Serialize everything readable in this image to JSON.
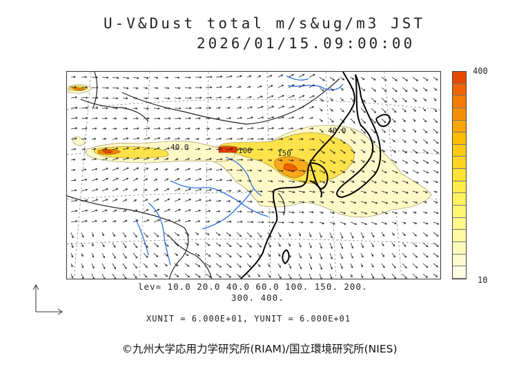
{
  "title": {
    "line1": "U-V&Dust total m/s&ug/m3 JST",
    "line2": "2026/01/15.09:00:00"
  },
  "colorbar": {
    "max_label": "400",
    "min_label": "10",
    "colors_top_to_bottom": [
      "#e64a00",
      "#f06500",
      "#f47a00",
      "#f78f00",
      "#faa600",
      "#fbbd00",
      "#fccb12",
      "#fdd521",
      "#fee235",
      "#ffec4a",
      "#fff25e",
      "#fff674",
      "#fff88a",
      "#fff9a2",
      "#fffab8",
      "#fffbd0",
      "#fffce4"
    ]
  },
  "contour_labels": [
    "40.0",
    "100",
    "150",
    "40.0"
  ],
  "legend": {
    "levels_line1": "lev= 10.0 20.0 40.0 60.0 100. 150. 200.",
    "levels_line2": "300. 400.",
    "units": "XUNIT = 6.000E+01, YUNIT = 6.000E+01"
  },
  "credit": "©九州大学応用力学研究所(RIAM)/国立環境研究所(NIES)",
  "icons": {
    "axis_indicator": "xy-axis-arrows-icon"
  },
  "colors": {
    "dust_low": "#fff9c8",
    "dust_mid": "#fde24a",
    "dust_high": "#f28200",
    "dust_peak": "#e23a00",
    "rivers": "#2b6fe0",
    "coastline": "#000000",
    "borders": "#333333",
    "vectors": "#222222"
  }
}
